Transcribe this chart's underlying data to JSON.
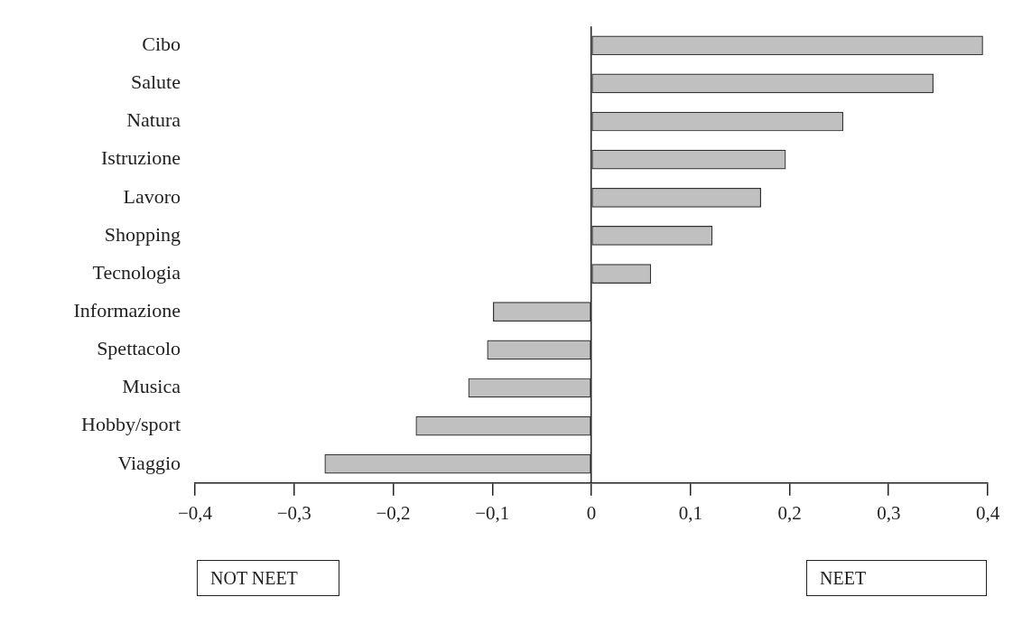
{
  "chart_data": {
    "type": "bar",
    "orientation": "horizontal",
    "categories": [
      "Cibo",
      "Salute",
      "Natura",
      "Istruzione",
      "Lavoro",
      "Shopping",
      "Tecnologia",
      "Informazione",
      "Spettacolo",
      "Musica",
      "Hobby/sport",
      "Viaggio"
    ],
    "values": [
      0.395,
      0.345,
      0.254,
      0.196,
      0.171,
      0.122,
      0.06,
      -0.099,
      -0.105,
      -0.124,
      -0.177,
      -0.269
    ],
    "color": "#c0c0c0",
    "xlim": [
      -0.4,
      0.4
    ],
    "xticks": [
      {
        "value": -0.4,
        "label": "−0,4"
      },
      {
        "value": -0.3,
        "label": "−0,3"
      },
      {
        "value": -0.2,
        "label": "−0,2"
      },
      {
        "value": -0.1,
        "label": "−0,1"
      },
      {
        "value": 0,
        "label": "0"
      },
      {
        "value": 0.1,
        "label": "0,1"
      },
      {
        "value": 0.2,
        "label": "0,2"
      },
      {
        "value": 0.3,
        "label": "0,3"
      },
      {
        "value": 0.4,
        "label": "0,4"
      }
    ],
    "annotations": [
      "NOT NEET",
      "NEET"
    ]
  }
}
